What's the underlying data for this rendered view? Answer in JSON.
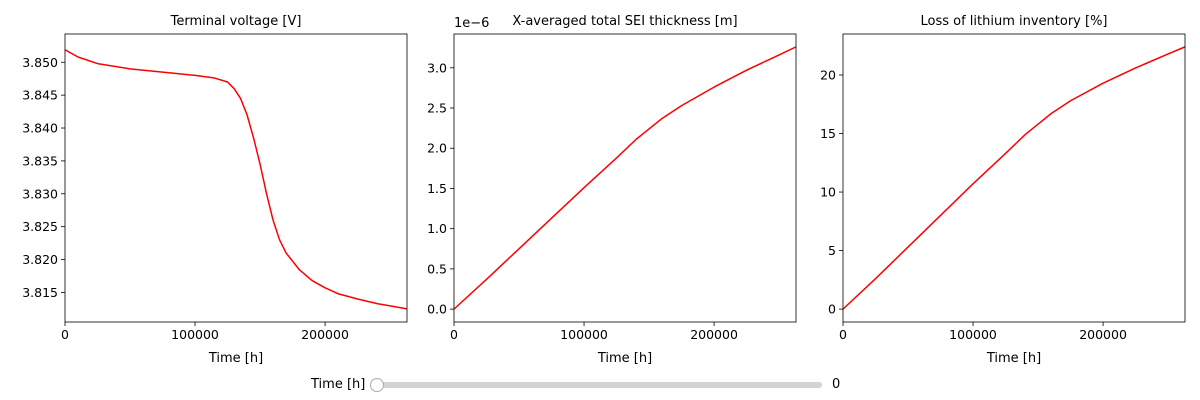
{
  "chart_data": [
    {
      "type": "line",
      "title": "Terminal voltage [V]",
      "xlabel": "Time [h]",
      "ylabel": "",
      "xlim": [
        0,
        263000
      ],
      "ylim": [
        3.8105,
        3.8543
      ],
      "xticks": [
        0,
        100000,
        200000
      ],
      "yticks": [
        3.815,
        3.82,
        3.825,
        3.83,
        3.835,
        3.84,
        3.845,
        3.85
      ],
      "ytick_labels": [
        "3.815",
        "3.820",
        "3.825",
        "3.830",
        "3.835",
        "3.840",
        "3.845",
        "3.850"
      ],
      "offset_text": "",
      "color": "#ff0000",
      "series": [
        {
          "x": [
            0,
            10000,
            25000,
            50000,
            75000,
            100000,
            115000,
            125000,
            130000,
            135000,
            140000,
            145000,
            150000,
            155000,
            160000,
            165000,
            170000,
            180000,
            190000,
            200000,
            210000,
            225000,
            240000,
            263000
          ],
          "values": [
            3.8519,
            3.8508,
            3.8498,
            3.849,
            3.8485,
            3.848,
            3.8476,
            3.847,
            3.846,
            3.8445,
            3.842,
            3.8385,
            3.8345,
            3.83,
            3.826,
            3.823,
            3.821,
            3.8185,
            3.8168,
            3.8157,
            3.8148,
            3.814,
            3.8133,
            3.8125
          ]
        }
      ]
    },
    {
      "type": "line",
      "title": "X-averaged total SEI thickness [m]",
      "xlabel": "Time [h]",
      "ylabel": "",
      "xlim": [
        0,
        263000
      ],
      "ylim": [
        -0.16,
        3.42
      ],
      "xticks": [
        0,
        100000,
        200000
      ],
      "yticks": [
        0.0,
        0.5,
        1.0,
        1.5,
        2.0,
        2.5,
        3.0
      ],
      "ytick_labels": [
        "0.0",
        "0.5",
        "1.0",
        "1.5",
        "2.0",
        "2.5",
        "3.0"
      ],
      "offset_text": "1e−6",
      "color": "#ff0000",
      "series": [
        {
          "x": [
            0,
            25000,
            50000,
            75000,
            100000,
            125000,
            140000,
            150000,
            160000,
            175000,
            200000,
            225000,
            250000,
            263000
          ],
          "values": [
            0.0,
            0.37,
            0.75,
            1.13,
            1.51,
            1.88,
            2.11,
            2.24,
            2.37,
            2.53,
            2.76,
            2.97,
            3.16,
            3.26
          ]
        }
      ]
    },
    {
      "type": "line",
      "title": "Loss of lithium inventory [%]",
      "xlabel": "Time [h]",
      "ylabel": "",
      "xlim": [
        0,
        263000
      ],
      "ylim": [
        -1.1,
        23.5
      ],
      "xticks": [
        0,
        100000,
        200000
      ],
      "yticks": [
        0,
        5,
        10,
        15,
        20
      ],
      "ytick_labels": [
        "0",
        "5",
        "10",
        "15",
        "20"
      ],
      "offset_text": "",
      "color": "#ff0000",
      "series": [
        {
          "x": [
            0,
            25000,
            50000,
            75000,
            100000,
            125000,
            140000,
            150000,
            160000,
            175000,
            200000,
            225000,
            250000,
            263000
          ],
          "values": [
            0.0,
            2.6,
            5.3,
            8.0,
            10.7,
            13.3,
            14.9,
            15.8,
            16.7,
            17.8,
            19.3,
            20.6,
            21.8,
            22.4
          ]
        }
      ]
    }
  ],
  "slider": {
    "label": "Time [h]",
    "value": "0"
  }
}
